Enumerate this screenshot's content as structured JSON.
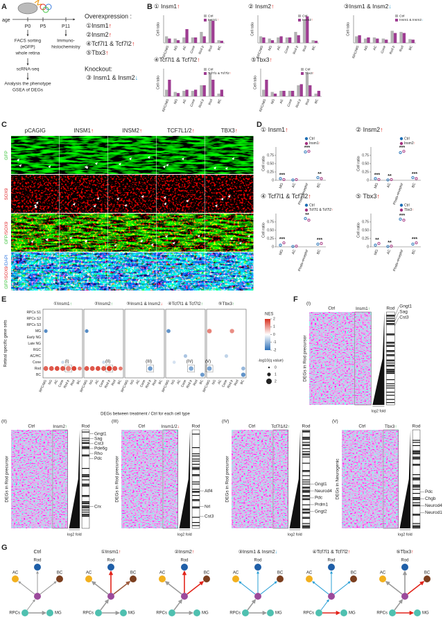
{
  "figure": {
    "arrow_colors": {
      "↑": "#e2231a",
      "↓": "#2a9fd6"
    },
    "A": {
      "letter": "A",
      "age": "age",
      "ages": [
        "P0",
        "P5",
        "P11"
      ],
      "facs": [
        "FACS sorting",
        "(eGFP)",
        "whole retina"
      ],
      "ihc": [
        "Immuno-",
        "histochemistry"
      ],
      "scrna": "scRNA-seq",
      "analysis": [
        "Analysis the phenotype",
        "GSEA of DEGs"
      ],
      "overexpression_title": "Overexpression :",
      "overexpression": [
        "①Insm1↑",
        "②Insm2↑",
        "④Tcf7l1 & Tcf7l2↑",
        "⑤Tbx3↑"
      ],
      "knockout_title": "Knockout:",
      "knockout": [
        "③ Insm1 & Insm2↓"
      ]
    },
    "B": {
      "letter": "B"
    },
    "C": {
      "letter": "C",
      "columns": [
        "pCAGIG",
        "INSM1↑",
        "INSM2↑",
        "TCF7L1/2↑",
        "TBX3↑"
      ],
      "rows": [
        [
          {
            "text": "GFP",
            "color": "#3ec43e"
          }
        ],
        [
          {
            "text": "SOX9",
            "color": "#e0262a"
          }
        ],
        [
          {
            "text": "GFP",
            "color": "#3ec43e"
          },
          {
            "text": "/SOX9",
            "color": "#e0262a"
          }
        ],
        [
          {
            "text": "GFP",
            "color": "#3ec43e"
          },
          {
            "text": "/SOX9",
            "color": "#e0262a"
          },
          {
            "text": "/DAPI",
            "color": "#3a7de0"
          }
        ]
      ],
      "layers": [
        "OS",
        "ONL",
        "INL"
      ]
    },
    "D": {
      "letter": "D"
    },
    "E": {
      "letter": "E"
    },
    "F": {
      "letter": "F",
      "arrow_colors": {
        "↑": "#2e9e3e",
        "↓": "#e2231a"
      },
      "label_color": "#2a4d9b",
      "heatmaps": [
        {
          "label": "(I)",
          "conditions": [
            "Ctrl",
            "Insm1↑",
            "Rod"
          ],
          "ylabel": "DEGs in Rod precursor",
          "xlabel": "log2 fold",
          "genes": [
            "Gngt1",
            "Sag",
            "Cst3"
          ]
        },
        {
          "label": "(II)",
          "conditions": [
            "Ctrl",
            "Insm2↑",
            "Rod"
          ],
          "ylabel": "DEGs in Rod precursor",
          "xlabel": "log2 fold",
          "genes": [
            "Gngt1",
            "Sag",
            "Cst3",
            "Pde6g",
            "Rho",
            "Pdc",
            "Crx"
          ]
        },
        {
          "label": "(III)",
          "conditions": [
            "Ctrl",
            "Insm1/2↓",
            "Rod"
          ],
          "ylabel": "DEGs in Rod precursor",
          "xlabel": "log2 fold",
          "genes": [
            "Atf4",
            "Nrl",
            "Cst3"
          ]
        },
        {
          "label": "(IV)",
          "conditions": [
            "Ctrl",
            "Tcf7l1/l2↑",
            "Rod"
          ],
          "ylabel": "DEGs in Rod precursor",
          "xlabel": "log2 fold",
          "genes": [
            "Gngt1",
            "Neurod4",
            "Pdc",
            "Prdm1",
            "Gngt2"
          ]
        },
        {
          "label": "(V)",
          "conditions": [
            "Ctrl",
            "Tbx3↑",
            "Rod"
          ],
          "ylabel": "DEGs in Neurogenic",
          "xlabel": "log2 fold",
          "genes": [
            "Pdc",
            "Chgb",
            "Neurod4",
            "Neurod1"
          ]
        }
      ]
    },
    "G": {
      "letter": "G",
      "node_labels": {
        "AC": "AC",
        "Rod": "Rod",
        "BC": "BC",
        "RPCs": "RPCs",
        "MG": "MG"
      },
      "node_colors": {
        "AC": "#f2b01e",
        "Rod": "#1f5fa8",
        "BC": "#7b3f1f",
        "center": "#9b4a9b",
        "RPCs": "#4fc0b0",
        "MG": "#4fc0b0"
      },
      "diagrams": [
        {
          "title": "Ctrl",
          "edges": {
            "AC": "#9a9a9a",
            "Rod": "#9a9a9a",
            "BC": "#9a9a9a",
            "RPCs": "#9a9a9a",
            "MG": "#9a9a9a"
          }
        },
        {
          "title": "①Insm1↑",
          "edges": {
            "AC": "#9a9a9a",
            "Rod": "#e2231a",
            "BC": "#9c5a3c",
            "RPCs": "#9a9a9a",
            "MG": "#9a9a9a"
          }
        },
        {
          "title": "②Insm2↑",
          "edges": {
            "AC": "#9a9a9a",
            "Rod": "#e2231a",
            "BC": "#e2231a",
            "RPCs": "#9a9a9a",
            "MG": "#9a9a9a"
          }
        },
        {
          "title": "③Insm1 & Insm2↓",
          "edges": {
            "AC": "#2a9fd6",
            "Rod": "#2a9fd6",
            "BC": "#2a9fd6",
            "RPCs": "#9a9a9a",
            "MG": "#9a9a9a"
          }
        },
        {
          "title": "④Tcf7l1 & Tcf7l2↑",
          "edges": {
            "AC": "#2a9fd6",
            "Rod": "#2a9fd6",
            "BC": "#2a9fd6",
            "RPCs": "#2a9fd6",
            "MG": "#e2231a"
          }
        },
        {
          "title": "⑤Tbx3↑",
          "edges": {
            "AC": "#9a9a9a",
            "Rod": "#9a9a9a",
            "BC": "#e2231a",
            "RPCs": "#9a9a9a",
            "MG": "#e2231a"
          }
        }
      ]
    }
  },
  "chart_data": [
    {
      "type": "bar",
      "title": "① Insm1↑",
      "ylabel": "Cell ratio",
      "categories": [
        "RPC/MG",
        "NG",
        "AC",
        "Cone",
        "Rod p",
        "Rod",
        "BC"
      ],
      "ylim": [
        0,
        0.5
      ],
      "series": [
        {
          "name": "Ctrl",
          "color": "#b3b3b3",
          "values": [
            0.12,
            0.08,
            0.1,
            0.1,
            0.2,
            0.42,
            0.05
          ]
        },
        {
          "name": "Insm1↑",
          "color": "#9e3d92",
          "values": [
            0.08,
            0.05,
            0.25,
            0.1,
            0.12,
            0.4,
            0.04
          ]
        }
      ]
    },
    {
      "type": "bar",
      "title": "② Insm2↑",
      "ylabel": "Cell ratio",
      "categories": [
        "RPC/MG",
        "NG",
        "AC",
        "Cone",
        "Rod p",
        "Rod",
        "BC"
      ],
      "ylim": [
        0,
        0.5
      ],
      "series": [
        {
          "name": "Ctrl",
          "color": "#b3b3b3",
          "values": [
            0.12,
            0.08,
            0.1,
            0.1,
            0.2,
            0.42,
            0.05
          ]
        },
        {
          "name": "Insm2↑",
          "color": "#9e3d92",
          "values": [
            0.1,
            0.05,
            0.12,
            0.1,
            0.14,
            0.48,
            0.04
          ]
        }
      ]
    },
    {
      "type": "bar",
      "title": "③Insm1 & Insm2↓",
      "ylabel": "Cell ratio",
      "categories": [
        "RPC/MG",
        "NG",
        "AC",
        "Cone",
        "Rod p",
        "Rod",
        "BC"
      ],
      "ylim": [
        0,
        0.5
      ],
      "series": [
        {
          "name": "Ctrl",
          "color": "#b3b3b3",
          "values": [
            0.12,
            0.08,
            0.1,
            0.08,
            0.22,
            0.2,
            0.07
          ]
        },
        {
          "name": "Insm1 & Insm2↓",
          "color": "#9e3d92",
          "values": [
            0.14,
            0.1,
            0.08,
            0.06,
            0.18,
            0.18,
            0.06
          ]
        }
      ]
    },
    {
      "type": "bar",
      "title": "④Tcf7l1 & Tcf7l2↑",
      "ylabel": "Cell ratio",
      "categories": [
        "RPC/MG",
        "NG",
        "AC",
        "Cone",
        "Rod p",
        "Rod",
        "BC"
      ],
      "ylim": [
        0,
        0.5
      ],
      "series": [
        {
          "name": "Ctrl",
          "color": "#b3b3b3",
          "values": [
            0.12,
            0.08,
            0.1,
            0.1,
            0.2,
            0.42,
            0.05
          ]
        },
        {
          "name": "Tcf7l1 & Tcf7l2↑",
          "color": "#9e3d92",
          "values": [
            0.3,
            0.06,
            0.12,
            0.12,
            0.2,
            0.3,
            0.12
          ]
        }
      ]
    },
    {
      "type": "bar",
      "title": "⑤Tbx3↑",
      "ylabel": "Cell ratio",
      "categories": [
        "RPC/MG",
        "NG",
        "AC",
        "Cone",
        "Rod p",
        "Rod",
        "BC"
      ],
      "ylim": [
        0,
        0.5
      ],
      "series": [
        {
          "name": "Ctrl",
          "color": "#b3b3b3",
          "values": [
            0.12,
            0.08,
            0.1,
            0.1,
            0.2,
            0.42,
            0.05
          ]
        },
        {
          "name": "Tbx3↑",
          "color": "#9e3d92",
          "values": [
            0.3,
            0.05,
            0.1,
            0.1,
            0.22,
            0.2,
            0.1
          ]
        }
      ]
    },
    {
      "type": "dot",
      "title": "① Insm1↑",
      "ylabel": "Cell ratio",
      "categories": [
        "MG",
        "AC",
        "Photo-receptor",
        "BC"
      ],
      "ylim": [
        0,
        1
      ],
      "yticks": [
        0,
        0.25,
        {
          "value": 0.5,
          "label": "0.50"
        },
        0.75
      ],
      "significance": [
        "***",
        null,
        "***",
        "**"
      ],
      "series": [
        {
          "name": "Ctrl",
          "color": "#1f6fb5",
          "values": [
            0.05,
            0.01,
            0.85,
            0.08
          ]
        },
        {
          "name": "Insm1↑",
          "color": "#a3317f",
          "values": [
            0.02,
            0.02,
            0.87,
            0.05
          ]
        }
      ]
    },
    {
      "type": "dot",
      "title": "② Insm2↑",
      "ylabel": "Cell ratio",
      "categories": [
        "MG",
        "AC",
        "Photo-receptor",
        "BC"
      ],
      "ylim": [
        0,
        1
      ],
      "yticks": [
        0,
        0.25,
        {
          "value": 0.5,
          "label": "0.50"
        },
        0.75
      ],
      "significance": [
        "***",
        "**",
        "***",
        "***"
      ],
      "series": [
        {
          "name": "Ctrl",
          "color": "#1f6fb5",
          "values": [
            0.05,
            0.01,
            0.83,
            0.08
          ]
        },
        {
          "name": "Insm2↑",
          "color": "#a3317f",
          "values": [
            0.02,
            0.02,
            0.87,
            0.05
          ]
        }
      ]
    },
    {
      "type": "dot",
      "title": "④ Tcf7l1 & Tcf7l2↑",
      "ylabel": "Cell ratio",
      "categories": [
        "MG",
        "AC",
        "Photo-receptor",
        "BC"
      ],
      "ylim": [
        0,
        1
      ],
      "yticks": [
        0,
        0.25,
        {
          "value": 0.5,
          "label": "0.50"
        },
        0.75
      ],
      "significance": [
        "***",
        null,
        "**",
        "***"
      ],
      "series": [
        {
          "name": "Ctrl",
          "color": "#1f6fb5",
          "values": [
            0.05,
            0.01,
            0.85,
            0.08
          ]
        },
        {
          "name": "Tcf7l1 & Tcf7l2↑",
          "color": "#a3317f",
          "values": [
            0.12,
            0.02,
            0.8,
            0.1
          ]
        }
      ]
    },
    {
      "type": "dot",
      "title": "⑤ Tbx3↑",
      "ylabel": "Cell ratio",
      "categories": [
        "MG",
        "AC",
        "Photo-receptor",
        "BC"
      ],
      "ylim": [
        0,
        1
      ],
      "yticks": [
        0,
        0.25,
        {
          "value": 0.5,
          "label": "0.50"
        },
        0.75
      ],
      "significance": [
        "**",
        "**",
        "***",
        "***"
      ],
      "series": [
        {
          "name": "Ctrl",
          "color": "#1f6fb5",
          "values": [
            0.05,
            0.01,
            0.83,
            0.08
          ]
        },
        {
          "name": "Tbx3↑",
          "color": "#a3317f",
          "values": [
            0.1,
            0.02,
            0.8,
            0.12
          ]
        }
      ]
    },
    {
      "type": "dotplot",
      "xlabel": "DEGs between treatment / Ctrl for each cell type",
      "ylabel": "Retinal specific gene sets",
      "rows": [
        "RPCs S1",
        "RPCs S2",
        "RPCs S3",
        "MG",
        "Early NG",
        "Late NG",
        "RGC",
        "AC/HC",
        "Cone",
        "Rod",
        "BC"
      ],
      "columns": [
        "RPC/MG",
        "NG",
        "AC",
        "Cone",
        "Rod p",
        "Rod",
        "BC"
      ],
      "color_label": "NES",
      "clim": [
        -2,
        2
      ],
      "colorbar_ticks": [
        2,
        1,
        0,
        -1,
        -2
      ],
      "colors": [
        "#2c6fb7",
        "#ffffff",
        "#d7301f"
      ],
      "size_label": "-log10(q value)",
      "size_ticks": [
        0,
        1,
        2
      ],
      "arrow_colors": {
        "↑": "#2e9e3e",
        "↓": "#e2231a"
      },
      "annotation_color": "#2a4d9b",
      "panels": [
        {
          "title": "①Insm1↑",
          "annotation": "(I)",
          "points": [
            {
              "row": "MG",
              "column": "RPC/MG",
              "nes": -1.6,
              "size": 1
            },
            {
              "row": "Cone",
              "column": "Cone",
              "nes": -0.5,
              "size": 0.8
            },
            {
              "row": "Rod",
              "column": "RPC/MG",
              "nes": 1.5,
              "size": 1.6
            },
            {
              "row": "Rod",
              "column": "NG",
              "nes": 1.6,
              "size": 1.6
            },
            {
              "row": "Rod",
              "column": "AC",
              "nes": 1.7,
              "size": 1.6
            },
            {
              "row": "Rod",
              "column": "Cone",
              "nes": 1.6,
              "size": 1.6
            },
            {
              "row": "Rod",
              "column": "Rod p",
              "nes": 1.2,
              "size": 1.8,
              "boxed": true
            },
            {
              "row": "Rod",
              "column": "Rod",
              "nes": 1.8,
              "size": 1.6
            },
            {
              "row": "Rod",
              "column": "BC",
              "nes": 1.3,
              "size": 1.2
            }
          ]
        },
        {
          "title": "②Insm2↑",
          "annotation": "(II)",
          "points": [
            {
              "row": "MG",
              "column": "RPC/MG",
              "nes": -1.6,
              "size": 1
            },
            {
              "row": "Cone",
              "column": "Cone",
              "nes": -0.5,
              "size": 0.8
            },
            {
              "row": "Rod",
              "column": "RPC/MG",
              "nes": 1.6,
              "size": 1.6
            },
            {
              "row": "Rod",
              "column": "NG",
              "nes": 1.6,
              "size": 1.6
            },
            {
              "row": "Rod",
              "column": "AC",
              "nes": 1.7,
              "size": 1.6
            },
            {
              "row": "Rod",
              "column": "Cone",
              "nes": 1.6,
              "size": 1.6
            },
            {
              "row": "Rod",
              "column": "Rod p",
              "nes": 1.9,
              "size": 1.8,
              "boxed": true
            },
            {
              "row": "Rod",
              "column": "Rod",
              "nes": 1.6,
              "size": 1.6
            },
            {
              "row": "Rod",
              "column": "BC",
              "nes": 1.3,
              "size": 1.2
            }
          ]
        },
        {
          "title": "③Insm1 & Insm2↓",
          "annotation": "(III)",
          "points": [
            {
              "row": "Rod",
              "column": "Rod p",
              "nes": -1.4,
              "size": 1.5,
              "boxed": true
            }
          ]
        },
        {
          "title": "④Tcf7l1 & Tcf7l2↑",
          "annotation": "(IV)",
          "points": [
            {
              "row": "MG",
              "column": "RPC/MG",
              "nes": -1.5,
              "size": 1.2
            },
            {
              "row": "AC/HC",
              "column": "Cone",
              "nes": -0.8,
              "size": 1
            },
            {
              "row": "Cone",
              "column": "NG",
              "nes": -0.4,
              "size": 0.8
            },
            {
              "row": "Rod",
              "column": "Rod p",
              "nes": -1.2,
              "size": 1.5,
              "boxed": true
            },
            {
              "row": "BC",
              "column": "BC",
              "nes": -1.4,
              "size": 1.3
            }
          ]
        },
        {
          "title": "⑤Tbx3↑",
          "annotation": "(V)",
          "points": [
            {
              "row": "MG",
              "column": "RPC/MG",
              "nes": 1.2,
              "size": 1.5
            },
            {
              "row": "MG",
              "column": "Rod p",
              "nes": 1.1,
              "size": 1.4
            },
            {
              "row": "AC/HC",
              "column": "Cone",
              "nes": -0.6,
              "size": 1
            },
            {
              "row": "Rod",
              "column": "RPC/MG",
              "nes": -1.3,
              "size": 1.5,
              "boxed": true
            },
            {
              "row": "Rod",
              "column": "BC",
              "nes": -1.0,
              "size": 1.2
            },
            {
              "row": "BC",
              "column": "BC",
              "nes": -1.5,
              "size": 1.4
            }
          ]
        }
      ]
    }
  ]
}
